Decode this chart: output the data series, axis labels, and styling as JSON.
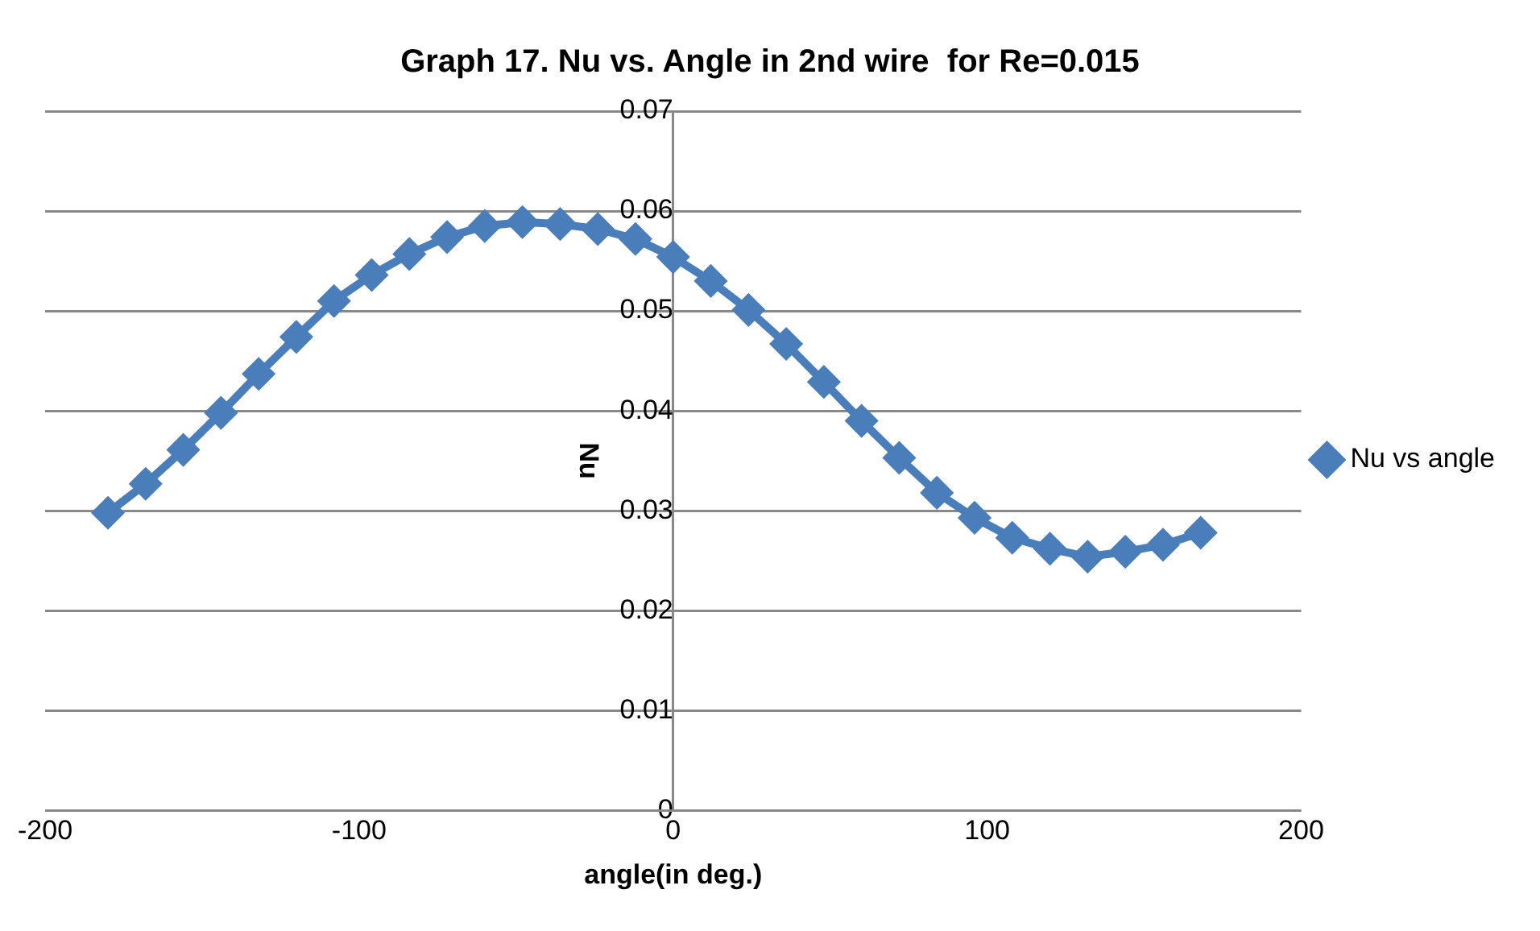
{
  "chart_data": {
    "type": "line",
    "title": "Graph 17. Nu vs. Angle in 2nd wire  for Re=0.015",
    "xlabel": "angle(in deg.)",
    "ylabel": "Nu",
    "x": [
      -180,
      -168,
      -156,
      -144,
      -132,
      -120,
      -108,
      -96,
      -84,
      -72,
      -60,
      -48,
      -36,
      -24,
      -12,
      0,
      12,
      24,
      36,
      48,
      60,
      72,
      84,
      96,
      108,
      120,
      132,
      144,
      156,
      168
    ],
    "series": [
      {
        "name": "Nu vs angle",
        "color": "#4a7ebb",
        "values": [
          0.0298,
          0.0327,
          0.0361,
          0.0398,
          0.0437,
          0.0474,
          0.051,
          0.0536,
          0.0557,
          0.0574,
          0.0585,
          0.0589,
          0.0587,
          0.0582,
          0.0572,
          0.0554,
          0.053,
          0.0501,
          0.0467,
          0.0429,
          0.039,
          0.0353,
          0.0318,
          0.0293,
          0.0273,
          0.0262,
          0.0254,
          0.0259,
          0.0266,
          0.0278
        ]
      }
    ],
    "xlim": [
      -200,
      200
    ],
    "xticks": [
      -200,
      -100,
      0,
      100,
      200
    ],
    "ylim": [
      0,
      0.07
    ],
    "yticks": [
      0,
      0.01,
      0.02,
      0.03,
      0.04,
      0.05,
      0.06,
      0.07
    ],
    "grid": "y",
    "legend": "right",
    "marker": "diamond",
    "line_style": "solid"
  }
}
